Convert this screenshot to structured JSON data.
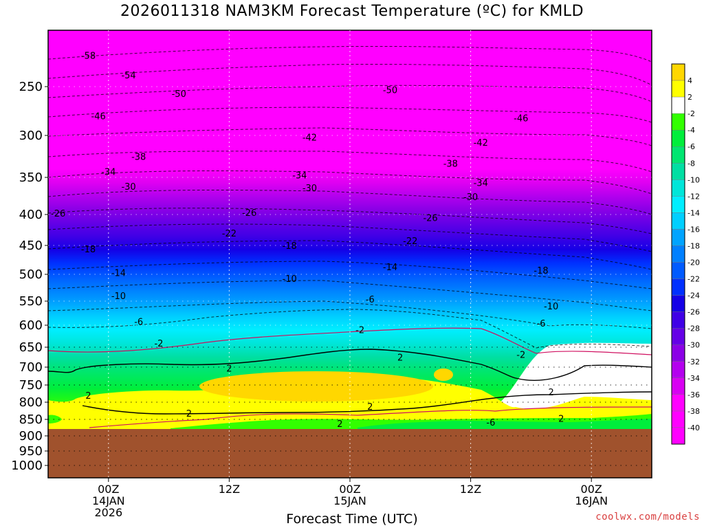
{
  "chart_data": {
    "type": "heatmap",
    "title": "2026011318 NAM3KM Forecast Temperature (ºC) for KMLD",
    "xlabel": "Forecast Time (UTC)",
    "ylabel": "",
    "credit": "coolwx.com/models",
    "x_ticks": [
      {
        "label": [
          "00Z",
          "14JAN",
          "2026"
        ],
        "hour": 6
      },
      {
        "label": [
          "12Z"
        ],
        "hour": 18
      },
      {
        "label": [
          "00Z",
          "15JAN"
        ],
        "hour": 30
      },
      {
        "label": [
          "12Z"
        ],
        "hour": 42
      },
      {
        "label": [
          "00Z",
          "16JAN"
        ],
        "hour": 54
      }
    ],
    "x_range_hours": [
      0,
      60
    ],
    "y_axis": "pressure (hPa)",
    "y_ticks": [
      250,
      300,
      350,
      400,
      450,
      500,
      550,
      600,
      650,
      700,
      750,
      800,
      850,
      900,
      950,
      1000
    ],
    "y_range": [
      200,
      1050
    ],
    "colorbar": {
      "labels": [
        "4",
        "2",
        "-2",
        "-4",
        "-6",
        "-8",
        "-10",
        "-12",
        "-14",
        "-16",
        "-18",
        "-20",
        "-22",
        "-24",
        "-26",
        "-28",
        "-30",
        "-32",
        "-34",
        "-36",
        "-38",
        "-40"
      ],
      "colors": [
        "#ffd700",
        "#ffff00",
        "#ffffff",
        "#32ff00",
        "#00ee3c",
        "#00e671",
        "#00dfa3",
        "#00e6d9",
        "#00eeff",
        "#00cfff",
        "#00a4ff",
        "#0080ff",
        "#005bff",
        "#0030ff",
        "#1500e6",
        "#4000e6",
        "#6500e6",
        "#8b00e6",
        "#b400ee",
        "#d800f2",
        "#ff00ff"
      ]
    },
    "contour_labels": [
      {
        "t": 4,
        "p": 218,
        "v": "-58"
      },
      {
        "t": 8,
        "p": 238,
        "v": "-54"
      },
      {
        "t": 13,
        "p": 257,
        "v": "-50"
      },
      {
        "t": 34,
        "p": 253,
        "v": "-50"
      },
      {
        "t": 5,
        "p": 280,
        "v": "-46"
      },
      {
        "t": 47,
        "p": 282,
        "v": "-46"
      },
      {
        "t": 26,
        "p": 302,
        "v": "-42"
      },
      {
        "t": 43,
        "p": 308,
        "v": "-42"
      },
      {
        "t": 9,
        "p": 325,
        "v": "-38"
      },
      {
        "t": 40,
        "p": 333,
        "v": "-38"
      },
      {
        "t": 6,
        "p": 343,
        "v": "-34"
      },
      {
        "t": 25,
        "p": 347,
        "v": "-34"
      },
      {
        "t": 43,
        "p": 357,
        "v": "-34"
      },
      {
        "t": 8,
        "p": 362,
        "v": "-30"
      },
      {
        "t": 26,
        "p": 364,
        "v": "-30"
      },
      {
        "t": 42,
        "p": 376,
        "v": "-30"
      },
      {
        "t": 1,
        "p": 398,
        "v": "-26"
      },
      {
        "t": 20,
        "p": 397,
        "v": "-26"
      },
      {
        "t": 38,
        "p": 405,
        "v": "-26"
      },
      {
        "t": 18,
        "p": 430,
        "v": "-22"
      },
      {
        "t": 36,
        "p": 442,
        "v": "-22"
      },
      {
        "t": 4,
        "p": 456,
        "v": "-18"
      },
      {
        "t": 24,
        "p": 450,
        "v": "-18"
      },
      {
        "t": 49,
        "p": 493,
        "v": "-18"
      },
      {
        "t": 7,
        "p": 497,
        "v": "-14"
      },
      {
        "t": 34,
        "p": 487,
        "v": "-14"
      },
      {
        "t": 24,
        "p": 508,
        "v": "-10"
      },
      {
        "t": 7,
        "p": 540,
        "v": "-10"
      },
      {
        "t": 50,
        "p": 560,
        "v": "-10"
      },
      {
        "t": 32,
        "p": 546,
        "v": "-6"
      },
      {
        "t": 9,
        "p": 592,
        "v": "-6"
      },
      {
        "t": 49,
        "p": 596,
        "v": "-6"
      },
      {
        "t": 31,
        "p": 610,
        "v": "-2"
      },
      {
        "t": 11,
        "p": 641,
        "v": "-2"
      },
      {
        "t": 47,
        "p": 668,
        "v": "-2"
      },
      {
        "t": 18,
        "p": 703,
        "v": "2"
      },
      {
        "t": 35,
        "p": 675,
        "v": "2"
      },
      {
        "t": 4,
        "p": 780,
        "v": "2"
      },
      {
        "t": 14,
        "p": 832,
        "v": "2"
      },
      {
        "t": 32,
        "p": 812,
        "v": "2"
      },
      {
        "t": 50,
        "p": 770,
        "v": "2"
      },
      {
        "t": 29,
        "p": 862,
        "v": "2"
      },
      {
        "t": 51,
        "p": 847,
        "v": "2"
      },
      {
        "t": 44,
        "p": 858,
        "v": "-6"
      }
    ],
    "terrain_pressure": 875,
    "grid": true
  }
}
